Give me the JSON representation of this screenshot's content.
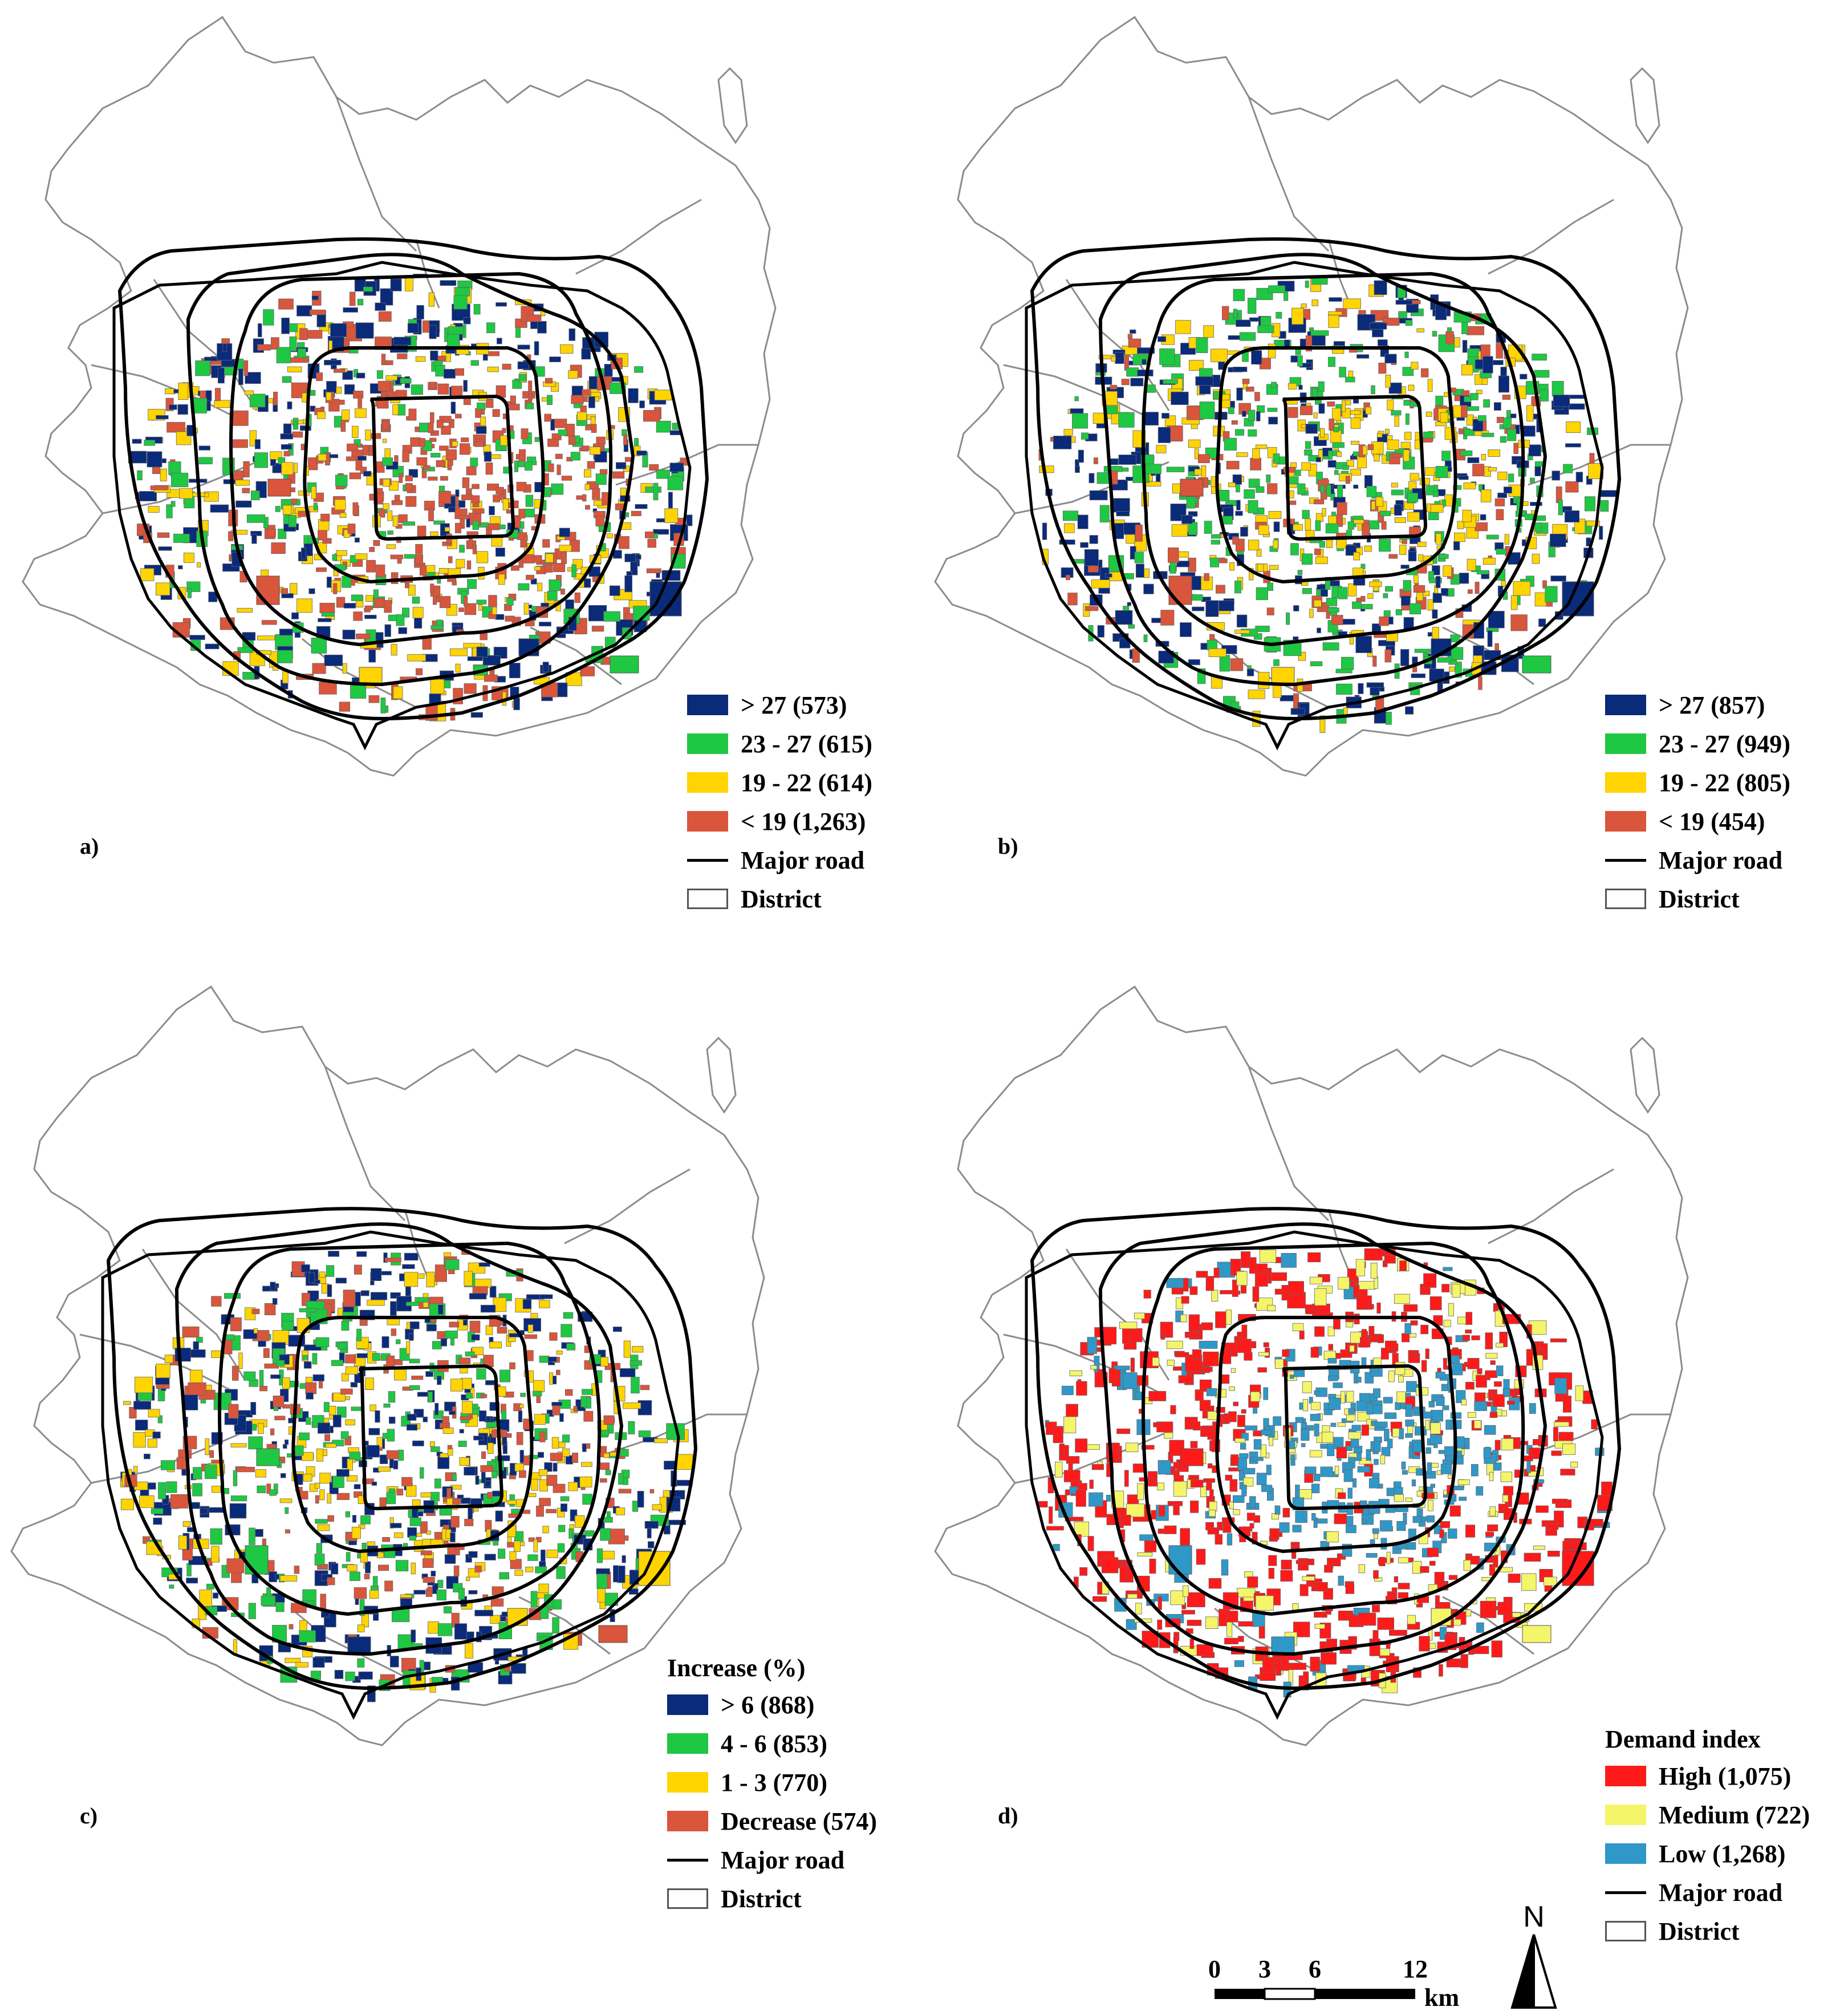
{
  "colors": {
    "district_outline": "#8c8c8c",
    "road": "#000000",
    "dark_blue": "#0a2a7a",
    "green": "#1ec843",
    "yellow": "#ffd400",
    "orange_red": "#d9553b",
    "red": "#ff1a1a",
    "light_yellow": "#f5f56a",
    "light_blue": "#2f98c8"
  },
  "panels": [
    {
      "id": "a",
      "label": "a)",
      "legend_title": "",
      "legend": [
        {
          "label": "> 27 (573)",
          "color": "#0a2a7a",
          "kind": "fill"
        },
        {
          "label": "23 - 27 (615)",
          "color": "#1ec843",
          "kind": "fill"
        },
        {
          "label": "19 - 22 (614)",
          "color": "#ffd400",
          "kind": "fill"
        },
        {
          "label": "< 19 (1,263)",
          "color": "#d9553b",
          "kind": "fill"
        },
        {
          "label": "Major road",
          "color": "#000000",
          "kind": "line"
        },
        {
          "label": "District",
          "color": "#ffffff",
          "kind": "box"
        }
      ],
      "class_weights": [
        573,
        615,
        614,
        1263
      ]
    },
    {
      "id": "b",
      "label": "b)",
      "legend_title": "",
      "legend": [
        {
          "label": "> 27 (857)",
          "color": "#0a2a7a",
          "kind": "fill"
        },
        {
          "label": "23 - 27 (949)",
          "color": "#1ec843",
          "kind": "fill"
        },
        {
          "label": "19 - 22 (805)",
          "color": "#ffd400",
          "kind": "fill"
        },
        {
          "label": "< 19 (454)",
          "color": "#d9553b",
          "kind": "fill"
        },
        {
          "label": "Major road",
          "color": "#000000",
          "kind": "line"
        },
        {
          "label": "District",
          "color": "#ffffff",
          "kind": "box"
        }
      ],
      "class_weights": [
        857,
        949,
        805,
        454
      ]
    },
    {
      "id": "c",
      "label": "c)",
      "legend_title": "Increase (%)",
      "legend": [
        {
          "label": "> 6 (868)",
          "color": "#0a2a7a",
          "kind": "fill"
        },
        {
          "label": "4 - 6 (853)",
          "color": "#1ec843",
          "kind": "fill"
        },
        {
          "label": "1 - 3 (770)",
          "color": "#ffd400",
          "kind": "fill"
        },
        {
          "label": "Decrease (574)",
          "color": "#d9553b",
          "kind": "fill"
        },
        {
          "label": "Major road",
          "color": "#000000",
          "kind": "line"
        },
        {
          "label": "District",
          "color": "#ffffff",
          "kind": "box"
        }
      ],
      "class_weights": [
        868,
        853,
        770,
        574
      ]
    },
    {
      "id": "d",
      "label": "d)",
      "legend_title": "Demand index",
      "legend": [
        {
          "label": "High (1,075)",
          "color": "#ff1a1a",
          "kind": "fill"
        },
        {
          "label": "Medium (722)",
          "color": "#f5f56a",
          "kind": "fill"
        },
        {
          "label": "Low (1,268)",
          "color": "#2f98c8",
          "kind": "fill"
        },
        {
          "label": "Major road",
          "color": "#000000",
          "kind": "line"
        },
        {
          "label": "District",
          "color": "#ffffff",
          "kind": "box"
        }
      ],
      "class_weights": [
        1075,
        722,
        1268
      ]
    }
  ],
  "scalebar": {
    "ticks": [
      "0",
      "3",
      "6",
      "12"
    ],
    "unit": "km"
  },
  "north_arrow": {
    "label": "N"
  }
}
